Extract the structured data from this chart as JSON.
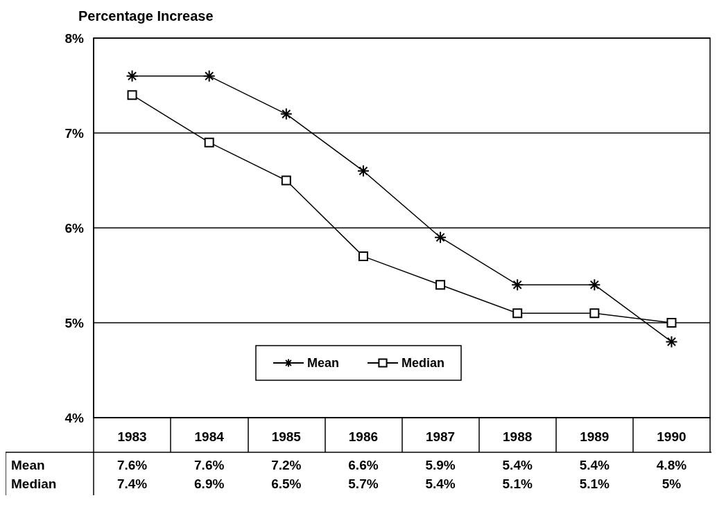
{
  "chart_data": {
    "type": "line",
    "title": "Percentage Increase",
    "categories": [
      "1983",
      "1984",
      "1985",
      "1986",
      "1987",
      "1988",
      "1989",
      "1990"
    ],
    "series": [
      {
        "name": "Mean",
        "color": "#000000",
        "marker": "cross",
        "values": [
          7.6,
          7.6,
          7.2,
          6.6,
          5.9,
          5.4,
          5.4,
          4.8
        ],
        "value_labels": [
          "7.6%",
          "7.6%",
          "7.2%",
          "6.6%",
          "5.9%",
          "5.4%",
          "5.4%",
          "4.8%"
        ]
      },
      {
        "name": "Median",
        "color": "#000000",
        "marker": "square",
        "values": [
          7.4,
          6.9,
          6.5,
          5.7,
          5.4,
          5.1,
          5.1,
          5.0
        ],
        "value_labels": [
          "7.4%",
          "6.9%",
          "6.5%",
          "5.7%",
          "5.4%",
          "5.1%",
          "5.1%",
          "5%"
        ]
      }
    ],
    "ylim": [
      4,
      8
    ],
    "yticks": [
      {
        "value": 4,
        "label": "4%"
      },
      {
        "value": 5,
        "label": "5%"
      },
      {
        "value": 6,
        "label": "6%"
      },
      {
        "value": 7,
        "label": "7%"
      },
      {
        "value": 8,
        "label": "8%"
      }
    ],
    "grid": "y",
    "legend": "bottom",
    "line_style": "solid"
  }
}
